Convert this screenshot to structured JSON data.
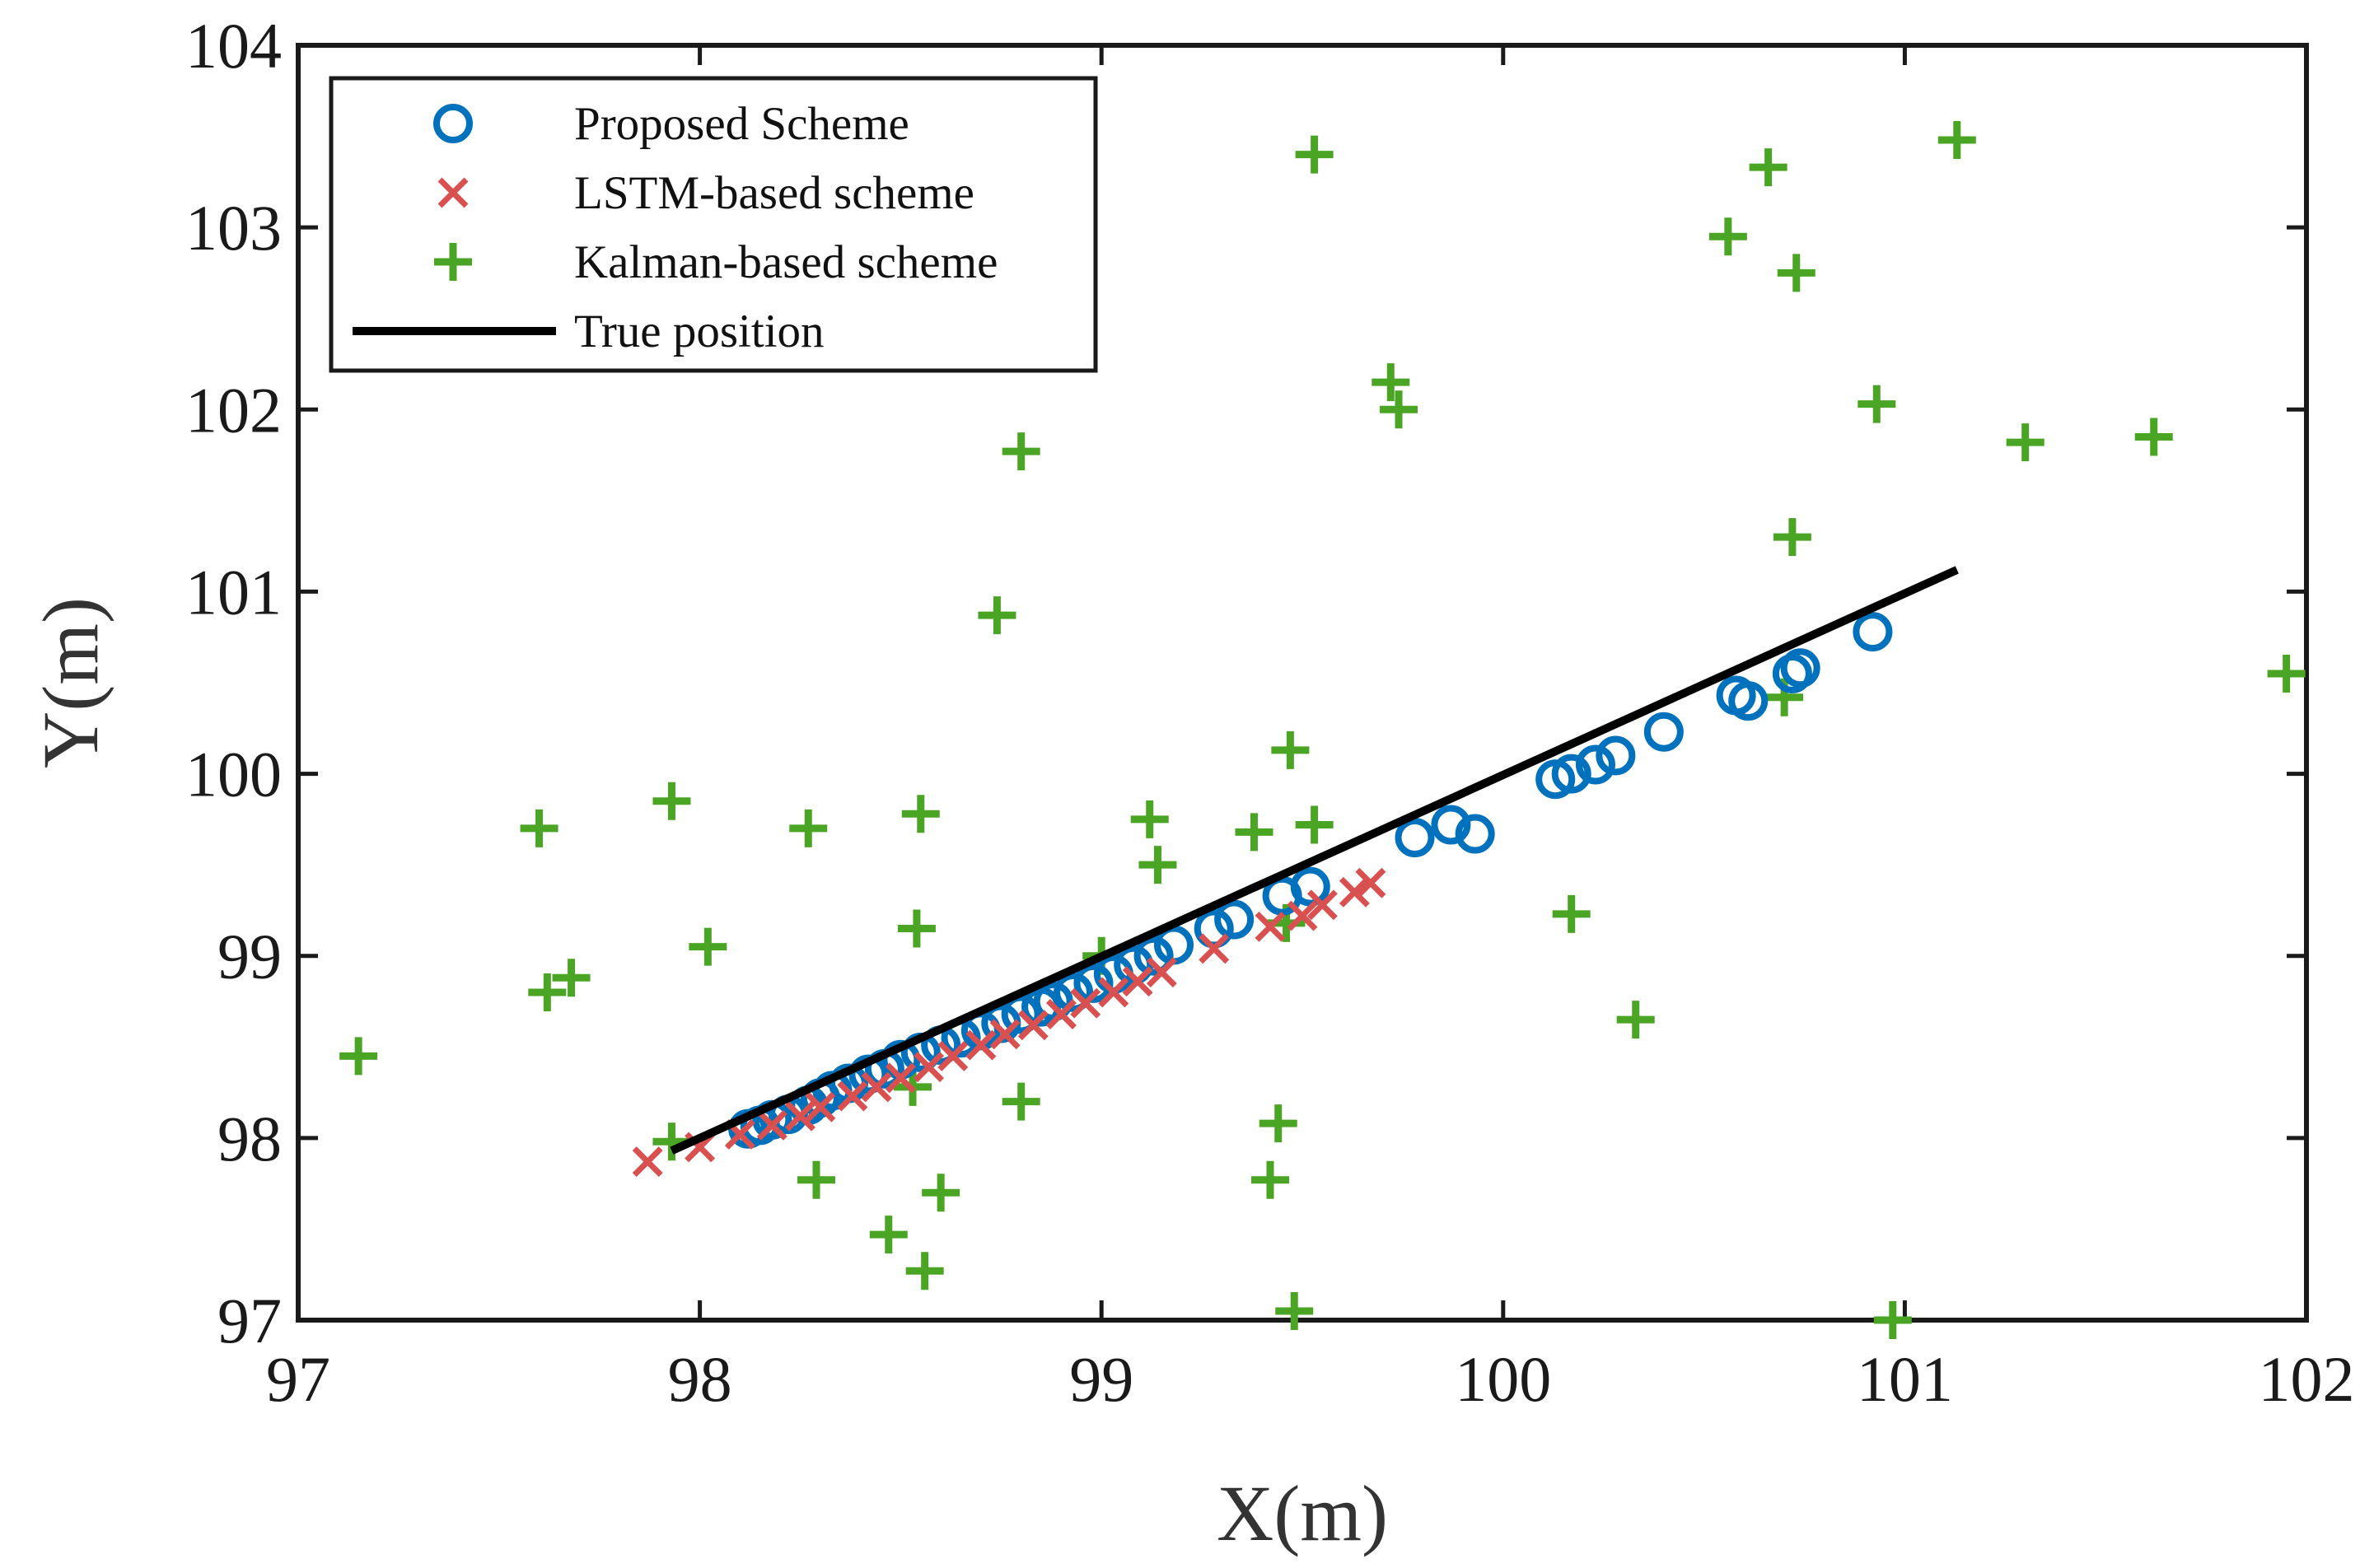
{
  "chart_data": {
    "type": "scatter",
    "title": "",
    "xlabel": "X(m)",
    "ylabel": "Y(m)",
    "xlim": [
      97,
      102
    ],
    "ylim": [
      97,
      104
    ],
    "xticks": [
      97,
      98,
      99,
      100,
      101,
      102
    ],
    "yticks": [
      97,
      98,
      99,
      100,
      101,
      102,
      103,
      104
    ],
    "grid": false,
    "legend_position": "top-left",
    "series": [
      {
        "name": "Proposed Scheme",
        "marker": "circle",
        "color": "#0072BD",
        "points": [
          [
            98.12,
            98.05
          ],
          [
            98.15,
            98.07
          ],
          [
            98.18,
            98.1
          ],
          [
            98.22,
            98.13
          ],
          [
            98.27,
            98.18
          ],
          [
            98.3,
            98.22
          ],
          [
            98.33,
            98.26
          ],
          [
            98.37,
            98.3
          ],
          [
            98.42,
            98.35
          ],
          [
            98.46,
            98.38
          ],
          [
            98.5,
            98.43
          ],
          [
            98.55,
            98.47
          ],
          [
            98.6,
            98.51
          ],
          [
            98.65,
            98.55
          ],
          [
            98.7,
            98.59
          ],
          [
            98.75,
            98.63
          ],
          [
            98.8,
            98.68
          ],
          [
            98.85,
            98.72
          ],
          [
            98.88,
            98.75
          ],
          [
            98.93,
            98.8
          ],
          [
            98.98,
            98.85
          ],
          [
            99.03,
            98.9
          ],
          [
            99.08,
            98.95
          ],
          [
            99.13,
            99.0
          ],
          [
            99.18,
            99.06
          ],
          [
            99.28,
            99.15
          ],
          [
            99.33,
            99.2
          ],
          [
            99.45,
            99.33
          ],
          [
            99.52,
            99.38
          ],
          [
            99.78,
            99.65
          ],
          [
            99.87,
            99.72
          ],
          [
            99.93,
            99.67
          ],
          [
            100.13,
            99.97
          ],
          [
            100.17,
            100.0
          ],
          [
            100.23,
            100.05
          ],
          [
            100.28,
            100.1
          ],
          [
            100.4,
            100.23
          ],
          [
            100.58,
            100.43
          ],
          [
            100.61,
            100.4
          ],
          [
            100.72,
            100.55
          ],
          [
            100.74,
            100.58
          ],
          [
            100.92,
            100.78
          ]
        ]
      },
      {
        "name": "LSTM-based scheme",
        "marker": "x",
        "color": "#D95050",
        "points": [
          [
            97.87,
            97.87
          ],
          [
            98.0,
            97.95
          ],
          [
            98.1,
            98.02
          ],
          [
            98.18,
            98.07
          ],
          [
            98.25,
            98.12
          ],
          [
            98.3,
            98.17
          ],
          [
            98.38,
            98.23
          ],
          [
            98.44,
            98.28
          ],
          [
            98.5,
            98.33
          ],
          [
            98.57,
            98.39
          ],
          [
            98.63,
            98.45
          ],
          [
            98.7,
            98.51
          ],
          [
            98.76,
            98.57
          ],
          [
            98.83,
            98.62
          ],
          [
            98.9,
            98.68
          ],
          [
            98.96,
            98.74
          ],
          [
            99.03,
            98.8
          ],
          [
            99.09,
            98.86
          ],
          [
            99.15,
            98.91
          ],
          [
            99.28,
            99.04
          ],
          [
            99.42,
            99.16
          ],
          [
            99.5,
            99.22
          ],
          [
            99.55,
            99.28
          ],
          [
            99.63,
            99.35
          ],
          [
            99.67,
            99.4
          ]
        ]
      },
      {
        "name": "Kalman-based scheme",
        "marker": "plus",
        "color": "#4BA524",
        "points": [
          [
            97.15,
            98.45
          ],
          [
            97.6,
            99.7
          ],
          [
            97.62,
            98.8
          ],
          [
            97.68,
            98.88
          ],
          [
            97.93,
            99.85
          ],
          [
            97.93,
            97.98
          ],
          [
            98.02,
            99.05
          ],
          [
            98.27,
            99.7
          ],
          [
            98.29,
            97.77
          ],
          [
            98.47,
            97.47
          ],
          [
            98.53,
            98.28
          ],
          [
            98.54,
            99.15
          ],
          [
            98.55,
            99.78
          ],
          [
            98.56,
            97.27
          ],
          [
            98.6,
            97.7
          ],
          [
            98.74,
            100.87
          ],
          [
            98.8,
            101.77
          ],
          [
            98.8,
            98.2
          ],
          [
            99.0,
            99.0
          ],
          [
            99.12,
            99.75
          ],
          [
            99.14,
            99.5
          ],
          [
            99.38,
            99.68
          ],
          [
            99.42,
            97.77
          ],
          [
            99.44,
            98.08
          ],
          [
            99.46,
            99.18
          ],
          [
            99.47,
            100.13
          ],
          [
            99.48,
            97.05
          ],
          [
            99.53,
            103.4
          ],
          [
            99.53,
            99.72
          ],
          [
            99.72,
            102.15
          ],
          [
            99.74,
            102.0
          ],
          [
            100.17,
            99.23
          ],
          [
            100.33,
            98.65
          ],
          [
            100.56,
            102.95
          ],
          [
            100.66,
            103.33
          ],
          [
            100.7,
            100.42
          ],
          [
            100.72,
            101.3
          ],
          [
            100.73,
            102.75
          ],
          [
            100.93,
            102.03
          ],
          [
            100.97,
            97.0
          ],
          [
            101.13,
            103.48
          ],
          [
            101.3,
            101.82
          ],
          [
            101.62,
            101.85
          ],
          [
            101.95,
            100.55
          ]
        ]
      },
      {
        "name": "True position",
        "marker": "line",
        "color": "#000000",
        "points": [
          [
            97.93,
            97.93
          ],
          [
            101.13,
            101.12
          ]
        ]
      }
    ]
  }
}
